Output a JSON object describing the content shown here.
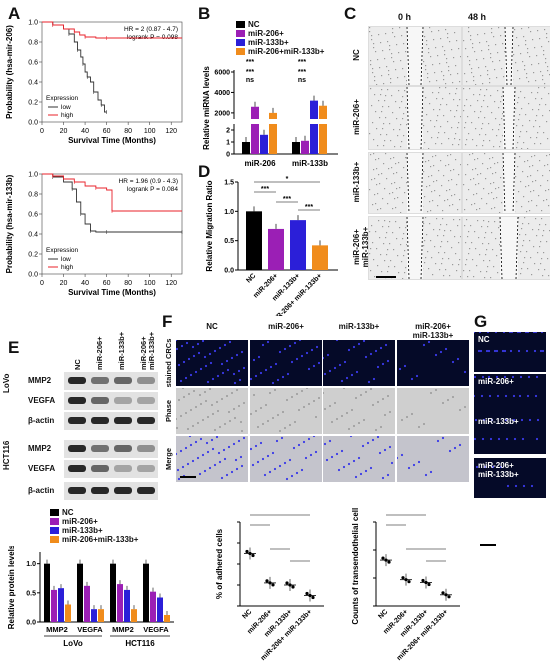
{
  "panels": {
    "A": "A",
    "B": "B",
    "C": "C",
    "D": "D",
    "E": "E",
    "F": "F",
    "G": "G"
  },
  "panelA": {
    "km_top": {
      "ylabel": "Probability (hsa-mir-206)",
      "xlabel": "Survival Time (Months)",
      "hr": "HR = 2 (0.87 - 4.7)",
      "logrank": "logrank P = 0.098",
      "legend_title": "Expression",
      "legend_low": "low",
      "legend_high": "high",
      "xticks": [
        "0",
        "20",
        "40",
        "60",
        "80",
        "100",
        "120"
      ],
      "yticks": [
        "0.0",
        "0.2",
        "0.4",
        "0.6",
        "0.8",
        "1.0"
      ]
    },
    "km_bottom": {
      "ylabel": "Probability (hsa-mir-133b)",
      "xlabel": "Survival Time (Months)",
      "hr": "HR = 1.96 (0.9 - 4.3)",
      "logrank": "logrank P = 0.084",
      "legend_title": "Expression",
      "legend_low": "low",
      "legend_high": "high",
      "xticks": [
        "0",
        "20",
        "40",
        "60",
        "80",
        "100",
        "120"
      ],
      "yticks": [
        "0.0",
        "0.2",
        "0.4",
        "0.6",
        "0.8",
        "1.0"
      ]
    },
    "colors": {
      "low": "#333333",
      "high": "#e8202a"
    }
  },
  "panelB": {
    "legend": [
      "NC",
      "miR-206+",
      "miR-133b+",
      "miR-206+miR-133b+"
    ],
    "ylabel": "Relative miRNA levels",
    "yticks_upper": [
      "6000",
      "4000",
      "2000"
    ],
    "yticks_lower": [
      "0",
      "1",
      "2"
    ],
    "groups": [
      "miR-206",
      "miR-133b"
    ],
    "sig": [
      "***",
      "***",
      "ns",
      "***",
      "***",
      "ns"
    ]
  },
  "panelC": {
    "cols": [
      "0 h",
      "48 h"
    ],
    "rows": [
      "NC",
      "miR-206+",
      "miR-133b+",
      "miR-206+\nmiR-133b+"
    ],
    "row1": "miR-206+",
    "row2": "miR-133b+"
  },
  "panelD": {
    "ylabel": "Relative Migration Ratio",
    "yticks": [
      "0.0",
      "0.5",
      "1.0",
      "1.5"
    ],
    "categories": [
      "NC",
      "miR-206+",
      "miR-133b+",
      "miR-206+\nmiR-133b+"
    ],
    "sig": [
      "*",
      "***",
      "***",
      "***"
    ]
  },
  "panelE": {
    "cols": [
      "NC",
      "miR-206+",
      "miR-133b+",
      "miR-206+\nmiR-133b+"
    ],
    "lovo": "LoVo",
    "hct": "HCT116",
    "bands": [
      "MMP2",
      "VEGFA",
      "β-actin"
    ],
    "legend": [
      "NC",
      "miR-206+",
      "miR-133b+",
      "miR-206+miR-133b+"
    ],
    "ylabel": "Relative protein levels",
    "yticks": [
      "0.0",
      "0.5",
      "1.0"
    ],
    "xcats": [
      "MMP2",
      "VEGFA",
      "MMP2",
      "VEGFA"
    ],
    "groups": [
      "LoVo",
      "HCT116"
    ]
  },
  "panelF": {
    "cols": [
      "NC",
      "miR-206+",
      "miR-133b+",
      "miR-206+\nmiR-133b+"
    ],
    "rows": [
      "stained CRCs",
      "Phase",
      "Merge"
    ],
    "chart1_ylabel": "% of adhered cells",
    "chart2_ylabel": "Counts of transendothelial cells",
    "cats": [
      "NC",
      "miR-206+",
      "miR-133b+",
      "miR-206+\nmiR-133b+"
    ]
  },
  "panelG": {
    "rows": [
      "NC",
      "miR-206+",
      "miR-133b+",
      "miR-206+\nmiR-133b+"
    ]
  },
  "colors": {
    "nc": "#000000",
    "m206": "#9b1fb5",
    "m133": "#2b1fd8",
    "combo": "#f08c1c"
  },
  "chart_data": [
    {
      "type": "line",
      "title": "",
      "xlabel": "Survival Time (Months)",
      "ylabel": "Probability (hsa-mir-206)",
      "xlim": [
        0,
        130
      ],
      "ylim": [
        0,
        1
      ],
      "series": [
        {
          "name": "low",
          "x": [
            0,
            10,
            20,
            25,
            30,
            33,
            36,
            38,
            40,
            42,
            45,
            48,
            52,
            55,
            58,
            60
          ],
          "y": [
            1,
            0.97,
            0.93,
            0.88,
            0.8,
            0.72,
            0.65,
            0.58,
            0.5,
            0.45,
            0.4,
            0.3,
            0.22,
            0.17,
            0.1,
            0.1
          ]
        },
        {
          "name": "high",
          "x": [
            0,
            10,
            20,
            30,
            35,
            40,
            50,
            60,
            130
          ],
          "y": [
            1,
            0.97,
            0.93,
            0.9,
            0.87,
            0.85,
            0.84,
            0.84,
            0.84
          ]
        }
      ]
    },
    {
      "type": "line",
      "title": "",
      "xlabel": "Survival Time (Months)",
      "ylabel": "Probability (hsa-mir-133b)",
      "xlim": [
        0,
        130
      ],
      "ylim": [
        0,
        1
      ],
      "series": [
        {
          "name": "low",
          "x": [
            0,
            10,
            20,
            28,
            32,
            36,
            40,
            45,
            50,
            60,
            80,
            130
          ],
          "y": [
            1,
            0.97,
            0.92,
            0.85,
            0.72,
            0.6,
            0.5,
            0.43,
            0.42,
            0.42,
            0.42,
            0.42
          ]
        },
        {
          "name": "high",
          "x": [
            0,
            10,
            20,
            30,
            40,
            50,
            60,
            65,
            130
          ],
          "y": [
            1,
            0.98,
            0.95,
            0.92,
            0.88,
            0.86,
            0.84,
            0.63,
            0.63
          ]
        }
      ]
    },
    {
      "type": "bar",
      "categories": [
        "miR-206",
        "miR-133b"
      ],
      "series": [
        {
          "name": "NC",
          "values": [
            1,
            1
          ]
        },
        {
          "name": "miR-206+",
          "values": [
            2600,
            1.1
          ]
        },
        {
          "name": "miR-133b+",
          "values": [
            1.6,
            3200
          ]
        },
        {
          "name": "miR-206+miR-133b+",
          "values": [
            2000,
            2700
          ]
        }
      ],
      "ylabel": "Relative miRNA levels"
    },
    {
      "type": "bar",
      "categories": [
        "NC",
        "miR-206+",
        "miR-133b+",
        "miR-206+ miR-133b+"
      ],
      "values": [
        1.0,
        0.7,
        0.85,
        0.42
      ],
      "ylabel": "Relative Migration Ratio",
      "ylim": [
        0,
        1.5
      ]
    },
    {
      "type": "bar",
      "categories": [
        "MMP2",
        "VEGFA",
        "MMP2",
        "VEGFA"
      ],
      "series": [
        {
          "name": "NC",
          "values": [
            1.0,
            1.0,
            1.0,
            1.0
          ]
        },
        {
          "name": "miR-206+",
          "values": [
            0.55,
            0.62,
            0.65,
            0.52
          ]
        },
        {
          "name": "miR-133b+",
          "values": [
            0.58,
            0.22,
            0.55,
            0.42
          ]
        },
        {
          "name": "miR-206+miR-133b+",
          "values": [
            0.3,
            0.22,
            0.22,
            0.12
          ]
        }
      ],
      "ylabel": "Relative protein levels",
      "ylim": [
        0,
        1.2
      ]
    },
    {
      "type": "scatter",
      "categories": [
        "NC",
        "miR-206+",
        "miR-133b+",
        "miR-206+ miR-133b+"
      ],
      "values": [
        50,
        22,
        20,
        10
      ],
      "ylabel": "% of adhered cells",
      "ylim": [
        0,
        80
      ]
    },
    {
      "type": "scatter",
      "categories": [
        "NC",
        "miR-206+",
        "miR-133b+",
        "miR-206+ miR-133b+"
      ],
      "values": [
        82,
        47,
        42,
        20
      ],
      "ylabel": "Counts of transendothelial cells",
      "ylim": [
        0,
        150
      ]
    }
  ]
}
